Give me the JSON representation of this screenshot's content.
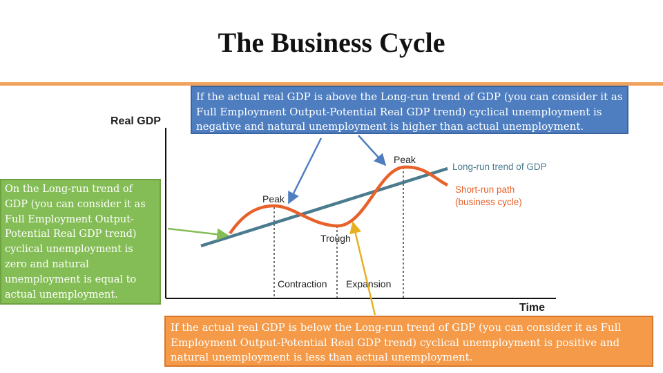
{
  "title": "The Business Cycle",
  "diagram": {
    "y_axis_label": "Real GDP",
    "x_axis_label": "Time",
    "labels": {
      "peak_1": "Peak",
      "peak_2": "Peak",
      "trough": "Trough",
      "contraction": "Contraction",
      "expansion": "Expansion",
      "trend_line": "Long-run trend of GDP",
      "short_run_1": "Short-run path",
      "short_run_2": "(business cycle)"
    },
    "colors": {
      "trend_line": "#4b7b8e",
      "cycle_curve": "#e8612a",
      "axis": "#111111",
      "guide": "#444444"
    }
  },
  "callouts": {
    "top": {
      "text": "If the actual real GDP is above the Long-run trend of GDP (you can consider it as Full Employment Output-Potential Real GDP trend) cyclical unemployment is negative and natural unemployment is higher than actual unemployment.",
      "color": "#4e7ec0"
    },
    "left": {
      "text": "On the Long-run trend of GDP (you can consider it as Full Employment Output-Potential Real GDP trend) cyclical unemployment is zero and natural unemployment is equal to actual unemployment.",
      "color": "#84bd55"
    },
    "bottom": {
      "text": "If the actual real GDP is below the Long-run trend of GDP (you can consider it as Full Employment Output-Potential Real GDP trend) cyclical unemployment is positive and natural unemployment is less than actual unemployment.",
      "color": "#f49a48"
    }
  },
  "accent_color": "#f0a35e"
}
